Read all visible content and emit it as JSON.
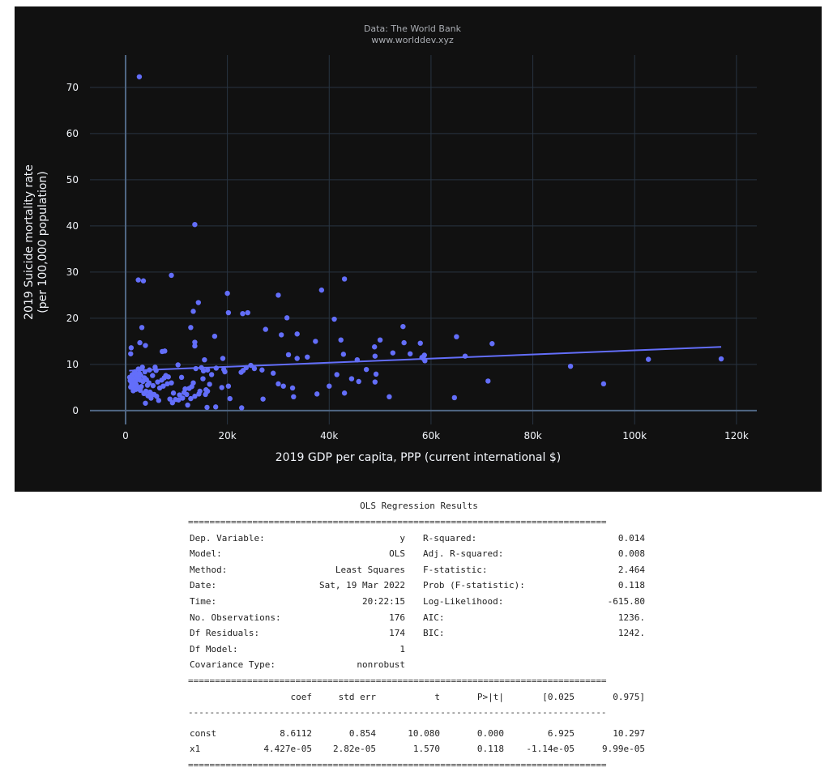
{
  "source": {
    "line1": "Data: The World Bank",
    "line2": "www.worlddev.xyz"
  },
  "colors": {
    "background": "#111111",
    "grid": "#283442",
    "marker": "#636efa",
    "trendline": "#636efa"
  },
  "chart_data": {
    "type": "scatter",
    "xlabel": "2019 GDP per capita, PPP (current international $)",
    "ylabel_line1": "2019 Suicide mortality rate",
    "ylabel_line2": "(per 100,000 population)",
    "xlim": [
      -7000,
      124000
    ],
    "ylim": [
      -3,
      77
    ],
    "x_ticks": [
      0,
      20000,
      40000,
      60000,
      80000,
      100000,
      120000
    ],
    "x_tick_labels": [
      "0",
      "20k",
      "40k",
      "60k",
      "80k",
      "100k",
      "120k"
    ],
    "y_ticks": [
      0,
      10,
      20,
      30,
      40,
      50,
      60,
      70
    ],
    "y_tick_labels": [
      "0",
      "10",
      "20",
      "30",
      "40",
      "50",
      "60",
      "70"
    ],
    "grid": true,
    "trendline": {
      "intercept": 8.6112,
      "slope": 4.427e-05,
      "x_range": [
        700,
        117000
      ]
    },
    "points": [
      [
        2700,
        72.3
      ],
      [
        13600,
        40.3
      ],
      [
        2500,
        28.3
      ],
      [
        3500,
        28.1
      ],
      [
        9000,
        29.3
      ],
      [
        43000,
        28.5
      ],
      [
        20000,
        25.4
      ],
      [
        38500,
        26.1
      ],
      [
        30000,
        25.0
      ],
      [
        14300,
        23.4
      ],
      [
        13300,
        21.5
      ],
      [
        23000,
        21.0
      ],
      [
        24000,
        21.2
      ],
      [
        20200,
        21.2
      ],
      [
        31700,
        20.1
      ],
      [
        41000,
        19.8
      ],
      [
        3200,
        18.0
      ],
      [
        12800,
        18.0
      ],
      [
        27500,
        17.6
      ],
      [
        30600,
        16.4
      ],
      [
        33700,
        16.6
      ],
      [
        17500,
        16.1
      ],
      [
        54500,
        18.2
      ],
      [
        65000,
        16.0
      ],
      [
        72000,
        14.5
      ],
      [
        57900,
        14.6
      ],
      [
        50000,
        15.3
      ],
      [
        52500,
        12.5
      ],
      [
        48900,
        13.8
      ],
      [
        37300,
        15.0
      ],
      [
        42300,
        15.3
      ],
      [
        54700,
        14.7
      ],
      [
        2800,
        14.7
      ],
      [
        3900,
        14.1
      ],
      [
        13600,
        14.8
      ],
      [
        13600,
        14.0
      ],
      [
        1100,
        13.6
      ],
      [
        7200,
        12.8
      ],
      [
        7700,
        12.9
      ],
      [
        1000,
        12.3
      ],
      [
        32000,
        12.1
      ],
      [
        33700,
        11.3
      ],
      [
        35700,
        11.6
      ],
      [
        42800,
        12.2
      ],
      [
        49000,
        11.8
      ],
      [
        55900,
        12.3
      ],
      [
        58200,
        11.5
      ],
      [
        58700,
        12.0
      ],
      [
        58500,
        11.3
      ],
      [
        58800,
        10.8
      ],
      [
        66700,
        11.8
      ],
      [
        87400,
        9.6
      ],
      [
        93900,
        5.8
      ],
      [
        102700,
        11.1
      ],
      [
        117000,
        11.2
      ],
      [
        71200,
        6.4
      ],
      [
        64600,
        2.8
      ],
      [
        51800,
        3.0
      ],
      [
        49000,
        6.2
      ],
      [
        49200,
        7.9
      ],
      [
        47300,
        8.9
      ],
      [
        45500,
        11.0
      ],
      [
        44400,
        6.9
      ],
      [
        45800,
        6.3
      ],
      [
        43000,
        3.8
      ],
      [
        41500,
        7.8
      ],
      [
        40000,
        5.3
      ],
      [
        37600,
        3.6
      ],
      [
        33000,
        3.0
      ],
      [
        32800,
        4.9
      ],
      [
        31000,
        5.3
      ],
      [
        30000,
        5.8
      ],
      [
        29000,
        8.1
      ],
      [
        27000,
        2.5
      ],
      [
        26800,
        8.8
      ],
      [
        25300,
        9.1
      ],
      [
        24600,
        9.8
      ],
      [
        23700,
        9.3
      ],
      [
        23100,
        8.7
      ],
      [
        22700,
        8.3
      ],
      [
        22800,
        0.6
      ],
      [
        20500,
        2.6
      ],
      [
        20200,
        5.3
      ],
      [
        19500,
        8.4
      ],
      [
        19300,
        8.9
      ],
      [
        19100,
        11.3
      ],
      [
        18900,
        5.0
      ],
      [
        17700,
        0.8
      ],
      [
        17800,
        9.2
      ],
      [
        16900,
        7.8
      ],
      [
        16100,
        8.8
      ],
      [
        16500,
        5.7
      ],
      [
        16100,
        4.2
      ],
      [
        15800,
        4.5
      ],
      [
        15700,
        3.5
      ],
      [
        16000,
        0.7
      ],
      [
        15500,
        11.0
      ],
      [
        15300,
        8.6
      ],
      [
        15200,
        6.9
      ],
      [
        14900,
        9.3
      ],
      [
        14600,
        4.2
      ],
      [
        14400,
        3.6
      ],
      [
        13800,
        9.1
      ],
      [
        13600,
        3.1
      ],
      [
        13300,
        6.0
      ],
      [
        13000,
        5.2
      ],
      [
        12800,
        2.6
      ],
      [
        12500,
        4.8
      ],
      [
        12200,
        1.2
      ],
      [
        12000,
        3.5
      ],
      [
        11700,
        4.7
      ],
      [
        11500,
        3.9
      ],
      [
        11200,
        2.7
      ],
      [
        11000,
        7.2
      ],
      [
        10600,
        3.4
      ],
      [
        10400,
        2.3
      ],
      [
        10300,
        9.9
      ],
      [
        9800,
        2.4
      ],
      [
        9400,
        3.8
      ],
      [
        9200,
        1.7
      ],
      [
        9000,
        6.0
      ],
      [
        8700,
        2.5
      ],
      [
        8400,
        7.3
      ],
      [
        8200,
        5.8
      ],
      [
        7900,
        7.6
      ],
      [
        7600,
        7.1
      ],
      [
        7400,
        5.3
      ],
      [
        7100,
        6.6
      ],
      [
        6700,
        4.9
      ],
      [
        6500,
        2.2
      ],
      [
        6300,
        6.2
      ],
      [
        6100,
        3.1
      ],
      [
        6000,
        8.7
      ],
      [
        5800,
        9.4
      ],
      [
        5600,
        3.5
      ],
      [
        5400,
        5.4
      ],
      [
        5300,
        7.6
      ],
      [
        5100,
        3.6
      ],
      [
        5000,
        2.7
      ],
      [
        4800,
        4.0
      ],
      [
        4700,
        8.8
      ],
      [
        4600,
        6.0
      ],
      [
        4400,
        3.2
      ],
      [
        4300,
        5.5
      ],
      [
        4100,
        6.7
      ],
      [
        4000,
        4.2
      ],
      [
        3900,
        1.6
      ],
      [
        3800,
        8.4
      ],
      [
        3700,
        7.1
      ],
      [
        3600,
        3.7
      ],
      [
        3400,
        6.3
      ],
      [
        3300,
        9.4
      ],
      [
        3100,
        5.2
      ],
      [
        3000,
        7.6
      ],
      [
        2900,
        4.4
      ],
      [
        2800,
        6.6
      ],
      [
        2700,
        8.1
      ],
      [
        2600,
        5.0
      ],
      [
        2500,
        9.0
      ],
      [
        2400,
        4.7
      ],
      [
        2300,
        6.9
      ],
      [
        2200,
        7.7
      ],
      [
        2100,
        5.6
      ],
      [
        2000,
        4.6
      ],
      [
        1900,
        6.2
      ],
      [
        1800,
        8.4
      ],
      [
        1700,
        5.2
      ],
      [
        1600,
        7.0
      ],
      [
        1500,
        4.3
      ],
      [
        1400,
        6.3
      ],
      [
        1300,
        7.8
      ],
      [
        1200,
        5.8
      ],
      [
        1100,
        6.8
      ],
      [
        1000,
        5.1
      ],
      [
        900,
        6.5
      ],
      [
        800,
        7.2
      ]
    ]
  },
  "ols": {
    "title": "OLS Regression Results",
    "top_rows": [
      [
        "Dep. Variable:",
        "y",
        "R-squared:",
        "0.014"
      ],
      [
        "Model:",
        "OLS",
        "Adj. R-squared:",
        "0.008"
      ],
      [
        "Method:",
        "Least Squares",
        "F-statistic:",
        "2.464"
      ],
      [
        "Date:",
        "Sat, 19 Mar 2022",
        "Prob (F-statistic):",
        "0.118"
      ],
      [
        "Time:",
        "20:22:15",
        "Log-Likelihood:",
        "-615.80"
      ],
      [
        "No. Observations:",
        "176",
        "AIC:",
        "1236."
      ],
      [
        "Df Residuals:",
        "174",
        "BIC:",
        "1242."
      ],
      [
        "Df Model:",
        "1",
        "",
        ""
      ],
      [
        "Covariance Type:",
        "nonrobust",
        "",
        ""
      ]
    ],
    "coef_header": [
      "",
      "coef",
      "std err",
      "t",
      "P>|t|",
      "[0.025",
      "0.975]"
    ],
    "coef_rows": [
      [
        "const",
        "8.6112",
        "0.854",
        "10.080",
        "0.000",
        "6.925",
        "10.297"
      ],
      [
        "x1",
        "4.427e-05",
        "2.82e-05",
        "1.570",
        "0.118",
        "-1.14e-05",
        "9.99e-05"
      ]
    ],
    "double_rule": "==============================================================================",
    "single_rule": "------------------------------------------------------------------------------"
  }
}
